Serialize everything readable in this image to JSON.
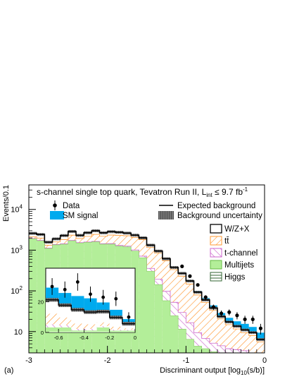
{
  "panel_label": "(a)",
  "colors": {
    "wzx": "#000000",
    "ttbar": "#ff9933",
    "tchannel": "#cc66cc",
    "multijets": "#b3ee99",
    "higgs": "#336633",
    "signal": "#00aaee",
    "uncertainty": "#444444",
    "data": "#000000"
  },
  "chart_data": {
    "type": "bar",
    "title": "s-channel single top quark, Tevatron Run II, L",
    "title_sub": "int",
    "title_tail": " ≤ 9.7 fb",
    "title_sup": "-1",
    "xlabel": "Discriminant output [log",
    "xlabel_sub": "10",
    "xlabel_tail": "(s/b)]",
    "ylabel": "Events/0.1",
    "xlim": [
      -3,
      0
    ],
    "ylim": [
      3,
      40000
    ],
    "yscale": "log",
    "x_ticks": [
      "-3",
      "-2",
      "-1",
      "0"
    ],
    "x_tick_values": [
      -3,
      -2,
      -1,
      0
    ],
    "y_ticks": [
      "10",
      "10",
      "10",
      "10"
    ],
    "y_tick_exponents": [
      "",
      "2",
      "3",
      "4"
    ],
    "y_tick_values": [
      10,
      100,
      1000,
      10000
    ],
    "bin_edges": [
      -3.0,
      -2.9,
      -2.8,
      -2.7,
      -2.6,
      -2.5,
      -2.4,
      -2.3,
      -2.2,
      -2.1,
      -2.0,
      -1.9,
      -1.8,
      -1.7,
      -1.6,
      -1.5,
      -1.4,
      -1.3,
      -1.2,
      -1.1,
      -1.0,
      -0.9,
      -0.8,
      -0.7,
      -0.6,
      -0.5,
      -0.4,
      -0.3,
      -0.2,
      -0.1,
      0.0
    ],
    "stack": {
      "higgs": [
        0.9,
        0.9,
        0.9,
        0.9,
        0.9,
        0.9,
        0.9,
        1.0,
        1.0,
        1.1,
        1.2,
        1.3,
        1.4,
        1.6,
        1.8,
        2.0,
        2.2,
        2.3,
        2.4,
        2.5,
        2.5,
        2.4,
        2.3,
        2.2,
        2.0,
        1.8,
        1.6,
        1.4,
        1.2,
        1.0
      ],
      "multijets": [
        1900,
        1700,
        1100,
        1350,
        1400,
        1700,
        1500,
        1550,
        1600,
        1400,
        1400,
        1250,
        1200,
        950,
        650,
        300,
        140,
        55,
        22,
        9,
        4,
        2,
        1.5,
        1,
        1,
        1,
        1,
        1,
        1,
        1
      ],
      "tchannel": [
        30,
        30,
        20,
        25,
        30,
        35,
        30,
        35,
        40,
        40,
        45,
        50,
        55,
        60,
        60,
        55,
        50,
        40,
        28,
        18,
        10,
        5,
        3,
        2,
        1.5,
        1,
        1,
        1,
        0.8,
        0.6
      ],
      "ttbar": [
        200,
        250,
        200,
        220,
        380,
        600,
        400,
        600,
        800,
        750,
        900,
        1000,
        1000,
        1050,
        1100,
        800,
        650,
        450,
        280,
        200,
        130,
        70,
        45,
        28,
        16,
        11,
        8,
        6,
        5,
        3
      ],
      "wzx": [
        460,
        450,
        250,
        300,
        480,
        550,
        380,
        500,
        560,
        480,
        500,
        450,
        370,
        280,
        200,
        170,
        110,
        70,
        45,
        40,
        28,
        14,
        8,
        5,
        3,
        2.5,
        2,
        1.6,
        1.5,
        0.8
      ]
    },
    "expected_background": [
      2591,
      2431,
      1571,
      1896,
      2291,
      2886,
      2311,
      2686,
      3001,
      2671,
      2846,
      2751,
      2626,
      2341,
      2012,
      1327,
      952,
      617,
      377,
      270,
      175,
      93,
      60,
      38,
      23.5,
      17.3,
      13.6,
      11.0,
      9.5,
      6.4
    ],
    "background_uncertainty_fraction": 0.08,
    "sm_signal": [
      0.5,
      0.5,
      0.5,
      0.5,
      0.5,
      0.5,
      0.6,
      0.6,
      0.6,
      0.7,
      0.8,
      0.9,
      1.0,
      1.2,
      1.5,
      2,
      3,
      4,
      5,
      7,
      9,
      7,
      7,
      6,
      5,
      4.5,
      4.3,
      4.5,
      3.5,
      3
    ],
    "data": [
      {
        "x": -1.05,
        "y": 400,
        "err": 20
      },
      {
        "x": -0.95,
        "y": 230,
        "err": 15
      },
      {
        "x": -0.85,
        "y": 140,
        "err": 12
      },
      {
        "x": -0.75,
        "y": 70,
        "err": 8
      },
      {
        "x": -0.65,
        "y": 40,
        "err": 6
      },
      {
        "x": -0.55,
        "y": 28,
        "err": 5
      },
      {
        "x": -0.45,
        "y": 30,
        "err": 5
      },
      {
        "x": -0.35,
        "y": 25,
        "err": 5
      },
      {
        "x": -0.25,
        "y": 20,
        "err": 4.5
      },
      {
        "x": -0.15,
        "y": 20,
        "err": 4.5
      },
      {
        "x": -0.05,
        "y": 12,
        "err": 3.5
      }
    ],
    "legend": [
      {
        "key": "data",
        "label": "Data"
      },
      {
        "key": "expected",
        "label": "Expected background"
      },
      {
        "key": "signal",
        "label": "SM signal"
      },
      {
        "key": "uncertainty",
        "label": "Background uncertainty"
      },
      {
        "key": "wzx",
        "label": "W/Z+X"
      },
      {
        "key": "ttbar",
        "label": "tt̄"
      },
      {
        "key": "tchannel",
        "label": "t-channel"
      },
      {
        "key": "multijets",
        "label": "Multijets"
      },
      {
        "key": "higgs",
        "label": "Higgs"
      }
    ],
    "inset": {
      "xlim": [
        -0.7,
        0
      ],
      "ylim": [
        0,
        42
      ],
      "x_ticks": [
        "-0.6",
        "-0.4",
        "-0.2",
        "0"
      ],
      "x_tick_values": [
        -0.6,
        -0.4,
        -0.2,
        0
      ],
      "y_ticks": [
        "0",
        "20"
      ],
      "y_tick_values": [
        0,
        20
      ],
      "bin_edges": [
        -0.7,
        -0.6,
        -0.5,
        -0.4,
        -0.3,
        -0.2,
        -0.1,
        0.0
      ],
      "higgs": [
        0.3,
        0.3,
        0.3,
        0.3,
        0.3,
        0.2,
        0.2
      ],
      "multijets": [
        3,
        3,
        1,
        1,
        3,
        1,
        1
      ],
      "tchannel": [
        2,
        1.5,
        1,
        1,
        0.8,
        0.6,
        0.5
      ],
      "ttbar": [
        7,
        5,
        3.5,
        3,
        2.5,
        2,
        1
      ],
      "wzx": [
        9,
        8,
        9,
        8,
        7,
        6,
        3
      ],
      "signal": [
        8,
        8,
        9,
        9,
        6,
        5,
        3
      ],
      "data": [
        {
          "x": -0.65,
          "y": 30,
          "err": 5.5
        },
        {
          "x": -0.55,
          "y": 28,
          "err": 5.3
        },
        {
          "x": -0.45,
          "y": 33,
          "err": 5.7
        },
        {
          "x": -0.35,
          "y": 25,
          "err": 5
        },
        {
          "x": -0.25,
          "y": 23,
          "err": 4.8
        },
        {
          "x": -0.15,
          "y": 22,
          "err": 4.7
        },
        {
          "x": -0.05,
          "y": 10,
          "err": 3.2
        }
      ]
    }
  }
}
